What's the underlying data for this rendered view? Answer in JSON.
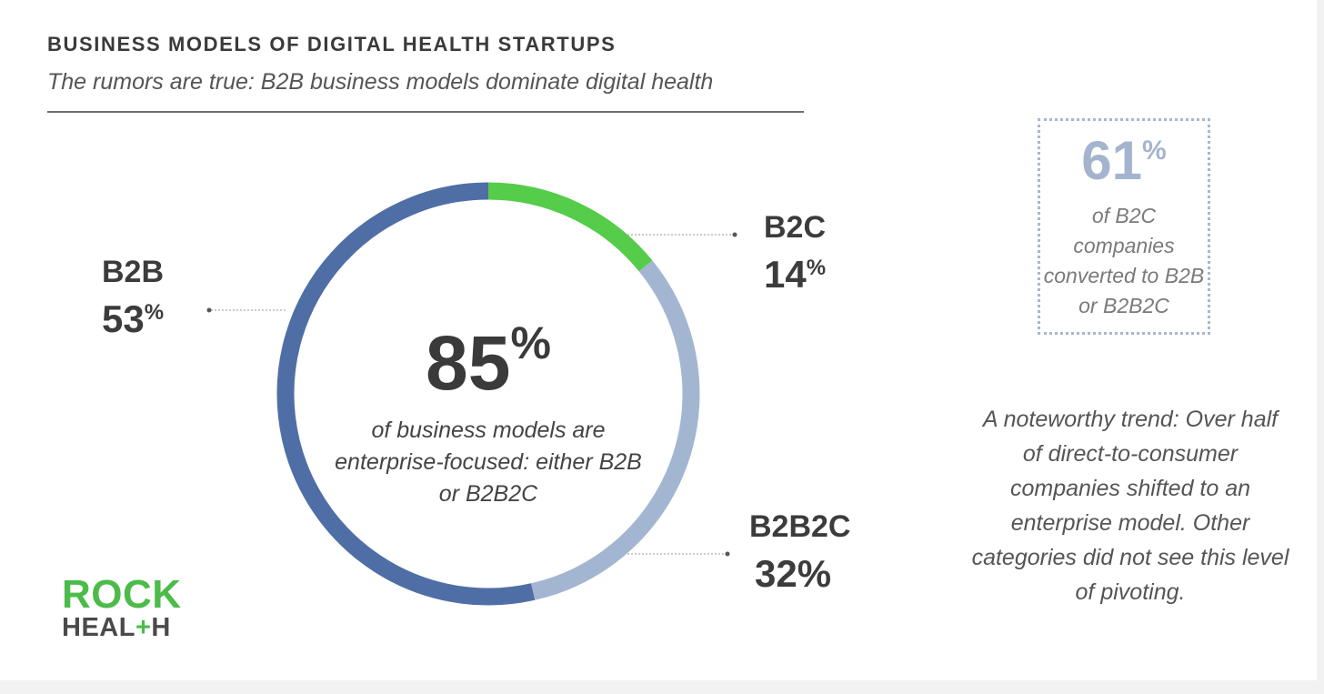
{
  "header": {
    "title": "BUSINESS MODELS OF DIGITAL HEALTH STARTUPS",
    "subtitle": "The rumors are true: B2B business models dominate digital health"
  },
  "chart_data": {
    "type": "pie",
    "style": "donut",
    "slices": [
      {
        "label": "B2C",
        "value": 14,
        "display": "14",
        "color": "#55cc4a"
      },
      {
        "label": "B2B2C",
        "value": 32,
        "display": "32%",
        "color": "#a3b6d1"
      },
      {
        "label": "B2B",
        "value": 53,
        "display": "53",
        "color": "#506ea6"
      }
    ],
    "center": {
      "value": "85",
      "unit": "%",
      "text": "of business models are enterprise-focused: either B2B or B2B2C"
    }
  },
  "callout": {
    "value": "61",
    "unit": "%",
    "text": "of B2C companies converted to B2B or B2B2C"
  },
  "note": "A noteworthy trend: Over half of direct-to-consumer companies shifted to an enterprise model. Other categories did not see this level of pivoting.",
  "logo": {
    "line1": "ROCK",
    "line2_a": "HEAL",
    "line2_plus": "+",
    "line2_b": "H"
  }
}
